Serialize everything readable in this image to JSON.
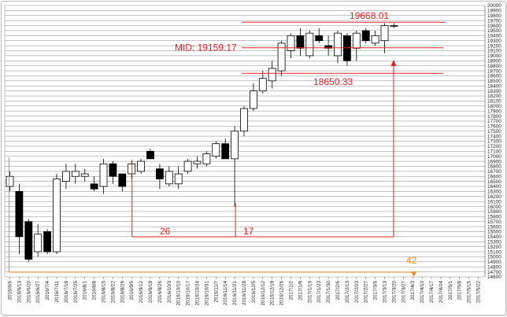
{
  "chart_data": {
    "type": "candlestick",
    "title": "",
    "xlabel": "",
    "ylabel": "",
    "ylim": [
      14600,
      20000
    ],
    "y_ticks": [
      14600,
      14700,
      14800,
      14900,
      15000,
      15100,
      15200,
      15300,
      15400,
      15500,
      15600,
      15700,
      15800,
      15900,
      16000,
      16100,
      16200,
      16300,
      16400,
      16500,
      16600,
      16700,
      16800,
      16900,
      17000,
      17100,
      17200,
      17300,
      17400,
      17500,
      17600,
      17700,
      17800,
      17900,
      18000,
      18100,
      18200,
      18300,
      18400,
      18500,
      18600,
      18700,
      18800,
      18900,
      19000,
      19100,
      19200,
      19300,
      19400,
      19500,
      19600,
      19700,
      19800,
      19900,
      20000
    ],
    "grid": true,
    "y_axis_position": "right",
    "x_ticks": [
      "2016/6/6",
      "2016/6/13",
      "2016/6/20",
      "2016/6/27",
      "2016/7/4",
      "2016/7/11",
      "2016/7/18",
      "2016/7/25",
      "2016/8/1",
      "2016/8/8",
      "2016/8/15",
      "2016/8/22",
      "2016/8/29",
      "2016/9/5",
      "2016/9/12",
      "2016/9/19",
      "2016/9/26",
      "2016/10/3",
      "2016/10/10",
      "2016/10/17",
      "2016/10/24",
      "2016/10/31",
      "2016/11/7",
      "2016/11/14",
      "2016/11/21",
      "2016/11/28",
      "2016/12/5",
      "2016/12/12",
      "2016/12/19",
      "2016/12/26",
      "2017/1/2",
      "2017/1/9",
      "2017/1/16",
      "2017/1/23",
      "2017/1/30",
      "2017/2/6",
      "2017/2/13",
      "2017/2/20",
      "2017/2/27",
      "2017/3/6",
      "2017/3/13",
      "2017/3/20",
      "2017/3/27",
      "2017/4/3",
      "2017/4/10",
      "2017/4/17",
      "2017/4/24",
      "2017/5/1",
      "2017/5/8",
      "2017/5/15",
      "2017/5/22"
    ],
    "candles": [
      {
        "o": 16400,
        "h": 16700,
        "l": 16300,
        "c": 16600
      },
      {
        "o": 16300,
        "h": 16450,
        "l": 15050,
        "c": 15400
      },
      {
        "o": 15700,
        "h": 15750,
        "l": 14900,
        "c": 14950
      },
      {
        "o": 15100,
        "h": 15650,
        "l": 15000,
        "c": 15450
      },
      {
        "o": 15500,
        "h": 15550,
        "l": 15050,
        "c": 15100
      },
      {
        "o": 15100,
        "h": 16650,
        "l": 15050,
        "c": 16550
      },
      {
        "o": 16500,
        "h": 16850,
        "l": 16350,
        "c": 16700
      },
      {
        "o": 16600,
        "h": 16850,
        "l": 16450,
        "c": 16700
      },
      {
        "o": 16600,
        "h": 16750,
        "l": 16500,
        "c": 16650
      },
      {
        "o": 16450,
        "h": 16600,
        "l": 16300,
        "c": 16350
      },
      {
        "o": 16400,
        "h": 16950,
        "l": 16250,
        "c": 16850
      },
      {
        "o": 16850,
        "h": 16900,
        "l": 16450,
        "c": 16600
      },
      {
        "o": 16650,
        "h": 16650,
        "l": 16300,
        "c": 16400
      },
      {
        "o": 16650,
        "h": 16900,
        "l": 16550,
        "c": 16850
      },
      {
        "o": 16700,
        "h": 16950,
        "l": 16650,
        "c": 16900
      },
      {
        "o": 17100,
        "h": 17150,
        "l": 16950,
        "c": 16950
      },
      {
        "o": 16750,
        "h": 16850,
        "l": 16350,
        "c": 16550
      },
      {
        "o": 16450,
        "h": 16800,
        "l": 16400,
        "c": 16700
      },
      {
        "o": 16450,
        "h": 16800,
        "l": 16350,
        "c": 16650
      },
      {
        "o": 16700,
        "h": 16950,
        "l": 16650,
        "c": 16900
      },
      {
        "o": 16850,
        "h": 17000,
        "l": 16750,
        "c": 16900
      },
      {
        "o": 16850,
        "h": 17100,
        "l": 16800,
        "c": 17050
      },
      {
        "o": 17000,
        "h": 17300,
        "l": 16950,
        "c": 17250
      },
      {
        "o": 17250,
        "h": 17350,
        "l": 16950,
        "c": 16950
      },
      {
        "o": 16950,
        "h": 17600,
        "l": 16000,
        "c": 17500
      },
      {
        "o": 17500,
        "h": 18000,
        "l": 17400,
        "c": 17950
      },
      {
        "o": 17950,
        "h": 18450,
        "l": 17900,
        "c": 18300
      },
      {
        "o": 18300,
        "h": 18700,
        "l": 18250,
        "c": 18550
      },
      {
        "o": 18500,
        "h": 18900,
        "l": 18350,
        "c": 18750
      },
      {
        "o": 18700,
        "h": 19300,
        "l": 18600,
        "c": 19250
      },
      {
        "o": 19100,
        "h": 19450,
        "l": 18950,
        "c": 19400
      },
      {
        "o": 19400,
        "h": 19550,
        "l": 19000,
        "c": 19150
      },
      {
        "o": 19000,
        "h": 19500,
        "l": 18950,
        "c": 19450
      },
      {
        "o": 19400,
        "h": 19550,
        "l": 19250,
        "c": 19300
      },
      {
        "o": 19200,
        "h": 19400,
        "l": 19000,
        "c": 19150
      },
      {
        "o": 19000,
        "h": 19500,
        "l": 18850,
        "c": 19450
      },
      {
        "o": 19400,
        "h": 19450,
        "l": 18800,
        "c": 18900
      },
      {
        "o": 19150,
        "h": 19500,
        "l": 18900,
        "c": 19450
      },
      {
        "o": 19500,
        "h": 19550,
        "l": 19250,
        "c": 19300
      },
      {
        "o": 19250,
        "h": 19500,
        "l": 19200,
        "c": 19400
      },
      {
        "o": 19300,
        "h": 19650,
        "l": 19050,
        "c": 19600
      },
      {
        "o": 19600,
        "h": 19650,
        "l": 19550,
        "c": 19600
      }
    ],
    "hlines": [
      {
        "value": 19668.01,
        "color": "#e2222b",
        "label": "19668.01"
      },
      {
        "value": 19159.17,
        "color": "#e2222b",
        "label": "MID: 19159.17"
      },
      {
        "value": 18650.33,
        "color": "#e2222b",
        "label": "18650.33"
      }
    ],
    "annotations": [
      {
        "text": "26",
        "color": "#e2222b"
      },
      {
        "text": "17",
        "color": "#e2222b"
      },
      {
        "text": "42",
        "color": "#f08a24"
      }
    ],
    "colors": {
      "grid": "#888888",
      "bull_body": "#ffffff",
      "bear_body": "#000000",
      "red": "#e2222b",
      "orange": "#f08a24"
    }
  }
}
